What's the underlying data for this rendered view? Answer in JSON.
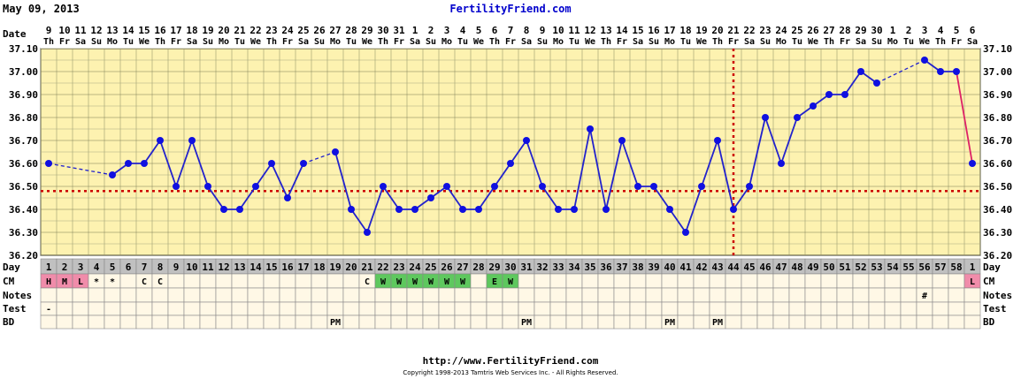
{
  "header": {
    "date": "May 09, 2013",
    "site": "FertilityFriend.com"
  },
  "footer": {
    "url": "http://www.FertilityFriend.com",
    "copyright": "Copyright 1998-2013 Tamtris Web Services Inc. - All Rights Reserved."
  },
  "labels": {
    "date": "Date",
    "day": "Day",
    "cm": "CM",
    "notes": "Notes",
    "test": "Test",
    "bd": "BD"
  },
  "chart_data": {
    "type": "line",
    "ylim": [
      36.2,
      37.1
    ],
    "yticks": [
      "37.10",
      "37.00",
      "36.90",
      "36.80",
      "36.70",
      "36.60",
      "36.50",
      "36.40",
      "36.30",
      "36.20"
    ],
    "dates": [
      "9",
      "10",
      "11",
      "12",
      "13",
      "14",
      "15",
      "16",
      "17",
      "18",
      "19",
      "20",
      "21",
      "22",
      "23",
      "24",
      "25",
      "26",
      "27",
      "28",
      "29",
      "30",
      "31",
      "1",
      "2",
      "3",
      "4",
      "5",
      "6",
      "7",
      "8",
      "9",
      "10",
      "11",
      "12",
      "13",
      "14",
      "15",
      "16",
      "17",
      "18",
      "19",
      "20",
      "21",
      "22",
      "23",
      "24",
      "25",
      "26",
      "27",
      "28",
      "29",
      "30",
      "1",
      "2",
      "3",
      "4",
      "5",
      "6"
    ],
    "weekdays": [
      "Th",
      "Fr",
      "Sa",
      "Su",
      "Mo",
      "Tu",
      "We",
      "Th",
      "Fr",
      "Sa",
      "Su",
      "Mo",
      "Tu",
      "We",
      "Th",
      "Fr",
      "Sa",
      "Su",
      "Mo",
      "Tu",
      "We",
      "Th",
      "Fr",
      "Sa",
      "Su",
      "Mo",
      "Tu",
      "We",
      "Th",
      "Fr",
      "Sa",
      "Su",
      "Mo",
      "Tu",
      "We",
      "Th",
      "Fr",
      "Sa",
      "Su",
      "Mo",
      "Tu",
      "We",
      "Th",
      "Fr",
      "Sa",
      "Su",
      "Mo",
      "Tu",
      "We",
      "Th",
      "Fr",
      "Sa",
      "Su",
      "Mo",
      "Tu",
      "We",
      "Th",
      "Fr",
      "Sa"
    ],
    "cycle_days": [
      "1",
      "2",
      "3",
      "4",
      "5",
      "6",
      "7",
      "8",
      "9",
      "10",
      "11",
      "12",
      "13",
      "14",
      "15",
      "16",
      "17",
      "18",
      "19",
      "20",
      "21",
      "22",
      "23",
      "24",
      "25",
      "26",
      "27",
      "28",
      "29",
      "30",
      "31",
      "32",
      "33",
      "34",
      "35",
      "36",
      "37",
      "38",
      "39",
      "40",
      "41",
      "42",
      "43",
      "44",
      "45",
      "46",
      "47",
      "48",
      "49",
      "50",
      "51",
      "52",
      "53",
      "54",
      "55",
      "56",
      "57",
      "58",
      "1"
    ],
    "temps": [
      36.6,
      null,
      null,
      null,
      36.55,
      36.6,
      36.6,
      36.7,
      36.5,
      36.7,
      36.5,
      36.4,
      36.4,
      36.5,
      36.6,
      36.45,
      36.6,
      null,
      36.65,
      36.4,
      36.3,
      36.5,
      36.4,
      36.4,
      36.45,
      36.5,
      36.4,
      36.4,
      36.5,
      36.6,
      36.7,
      36.5,
      36.4,
      36.4,
      36.75,
      36.4,
      36.7,
      36.5,
      36.5,
      36.4,
      36.3,
      36.5,
      36.7,
      36.4,
      36.5,
      36.8,
      36.6,
      36.8,
      36.85,
      36.9,
      36.9,
      37.0,
      36.95,
      null,
      null,
      37.05,
      37.0,
      37.0,
      36.6
    ],
    "dashed_segments": [
      [
        0,
        4
      ],
      [
        16,
        18
      ],
      [
        52,
        55
      ]
    ],
    "coverline": 36.48,
    "ovulation_index": 43,
    "cm": [
      "H",
      "M",
      "L",
      "*",
      "*",
      "",
      "C",
      "C",
      "",
      "",
      "",
      "",
      "",
      "",
      "",
      "",
      "",
      "",
      "",
      "",
      "C",
      "W",
      "W",
      "W",
      "W",
      "W",
      "W",
      "",
      "E",
      "W",
      "",
      "",
      "",
      "",
      "",
      "",
      "",
      "",
      "",
      "",
      "",
      "",
      "",
      "",
      "",
      "",
      "",
      "",
      "",
      "",
      "",
      "",
      "",
      "",
      "",
      "",
      "",
      "",
      "L"
    ],
    "cm_colors": {
      "H": "#f08caa",
      "M": "#f08caa",
      "L": "#f08caa",
      "W": "#5ec85e",
      "E": "#5ec85e"
    },
    "notes": [
      "",
      "",
      "",
      "",
      "",
      "",
      "",
      "",
      "",
      "",
      "",
      "",
      "",
      "",
      "",
      "",
      "",
      "",
      "",
      "",
      "",
      "",
      "",
      "",
      "",
      "",
      "",
      "",
      "",
      "",
      "",
      "",
      "",
      "",
      "",
      "",
      "",
      "",
      "",
      "",
      "",
      "",
      "",
      "",
      "",
      "",
      "",
      "",
      "",
      "",
      "",
      "",
      "",
      "",
      "",
      "#",
      "",
      "",
      ""
    ],
    "test": [
      "-",
      "",
      "",
      "",
      "",
      "",
      "",
      "",
      "",
      "",
      "",
      "",
      "",
      "",
      "",
      "",
      "",
      "",
      "",
      "",
      "",
      "",
      "",
      "",
      "",
      "",
      "",
      "",
      "",
      "",
      "",
      "",
      "",
      "",
      "",
      "",
      "",
      "",
      "",
      "",
      "",
      "",
      "",
      "",
      "",
      "",
      "",
      "",
      "",
      "",
      "",
      "",
      "",
      "",
      "",
      "",
      "",
      "",
      ""
    ],
    "bd": [
      "",
      "",
      "",
      "",
      "",
      "",
      "",
      "",
      "",
      "",
      "",
      "",
      "",
      "",
      "",
      "",
      "",
      "",
      "PM",
      "",
      "",
      "",
      "",
      "",
      "",
      "",
      "",
      "",
      "",
      "",
      "PM",
      "",
      "",
      "",
      "",
      "",
      "",
      "",
      "",
      "PM",
      "",
      "",
      "PM",
      "",
      "",
      "",
      "",
      "",
      "",
      "",
      "",
      "",
      "",
      "",
      "",
      "",
      "",
      "",
      ""
    ]
  }
}
